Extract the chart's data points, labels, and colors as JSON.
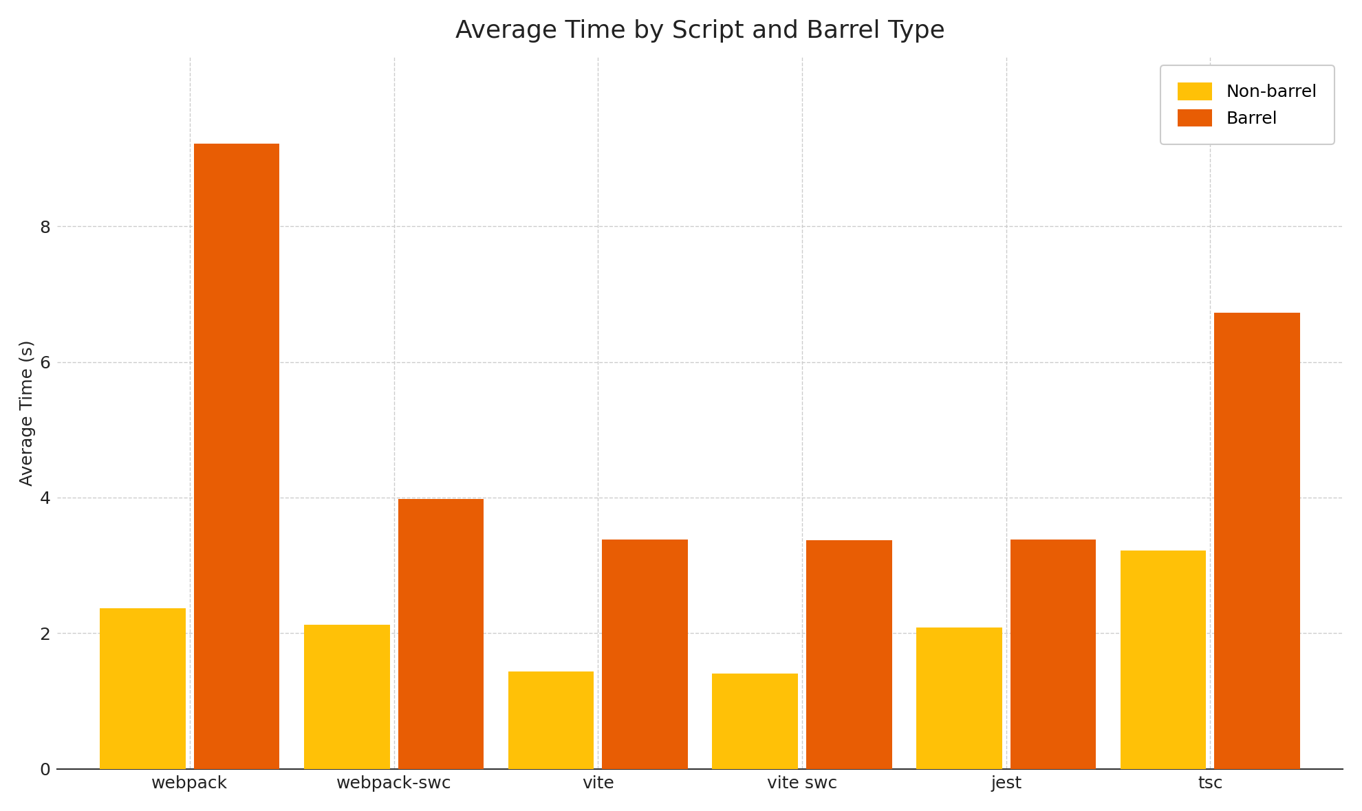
{
  "title": "Average Time by Script and Barrel Type",
  "xlabel": "",
  "ylabel": "Average Time (s)",
  "categories": [
    "webpack",
    "webpack-swc",
    "vite",
    "vite swc",
    "jest",
    "tsc"
  ],
  "non_barrel_values": [
    2.37,
    2.12,
    1.43,
    1.4,
    2.08,
    3.22
  ],
  "barrel_values": [
    9.22,
    3.98,
    3.38,
    3.37,
    3.38,
    6.72
  ],
  "non_barrel_color": "#FFC107",
  "barrel_color": "#E85D04",
  "background_color": "#ffffff",
  "ylim": [
    0,
    10.5
  ],
  "yticks": [
    0,
    2,
    4,
    6,
    8
  ],
  "legend_labels": [
    "Non-barrel",
    "Barrel"
  ],
  "title_fontsize": 26,
  "axis_label_fontsize": 18,
  "tick_fontsize": 18,
  "legend_fontsize": 18,
  "bar_width": 0.42,
  "bar_gap": 0.04,
  "grid_color": "#cccccc",
  "spine_color": "#333333"
}
